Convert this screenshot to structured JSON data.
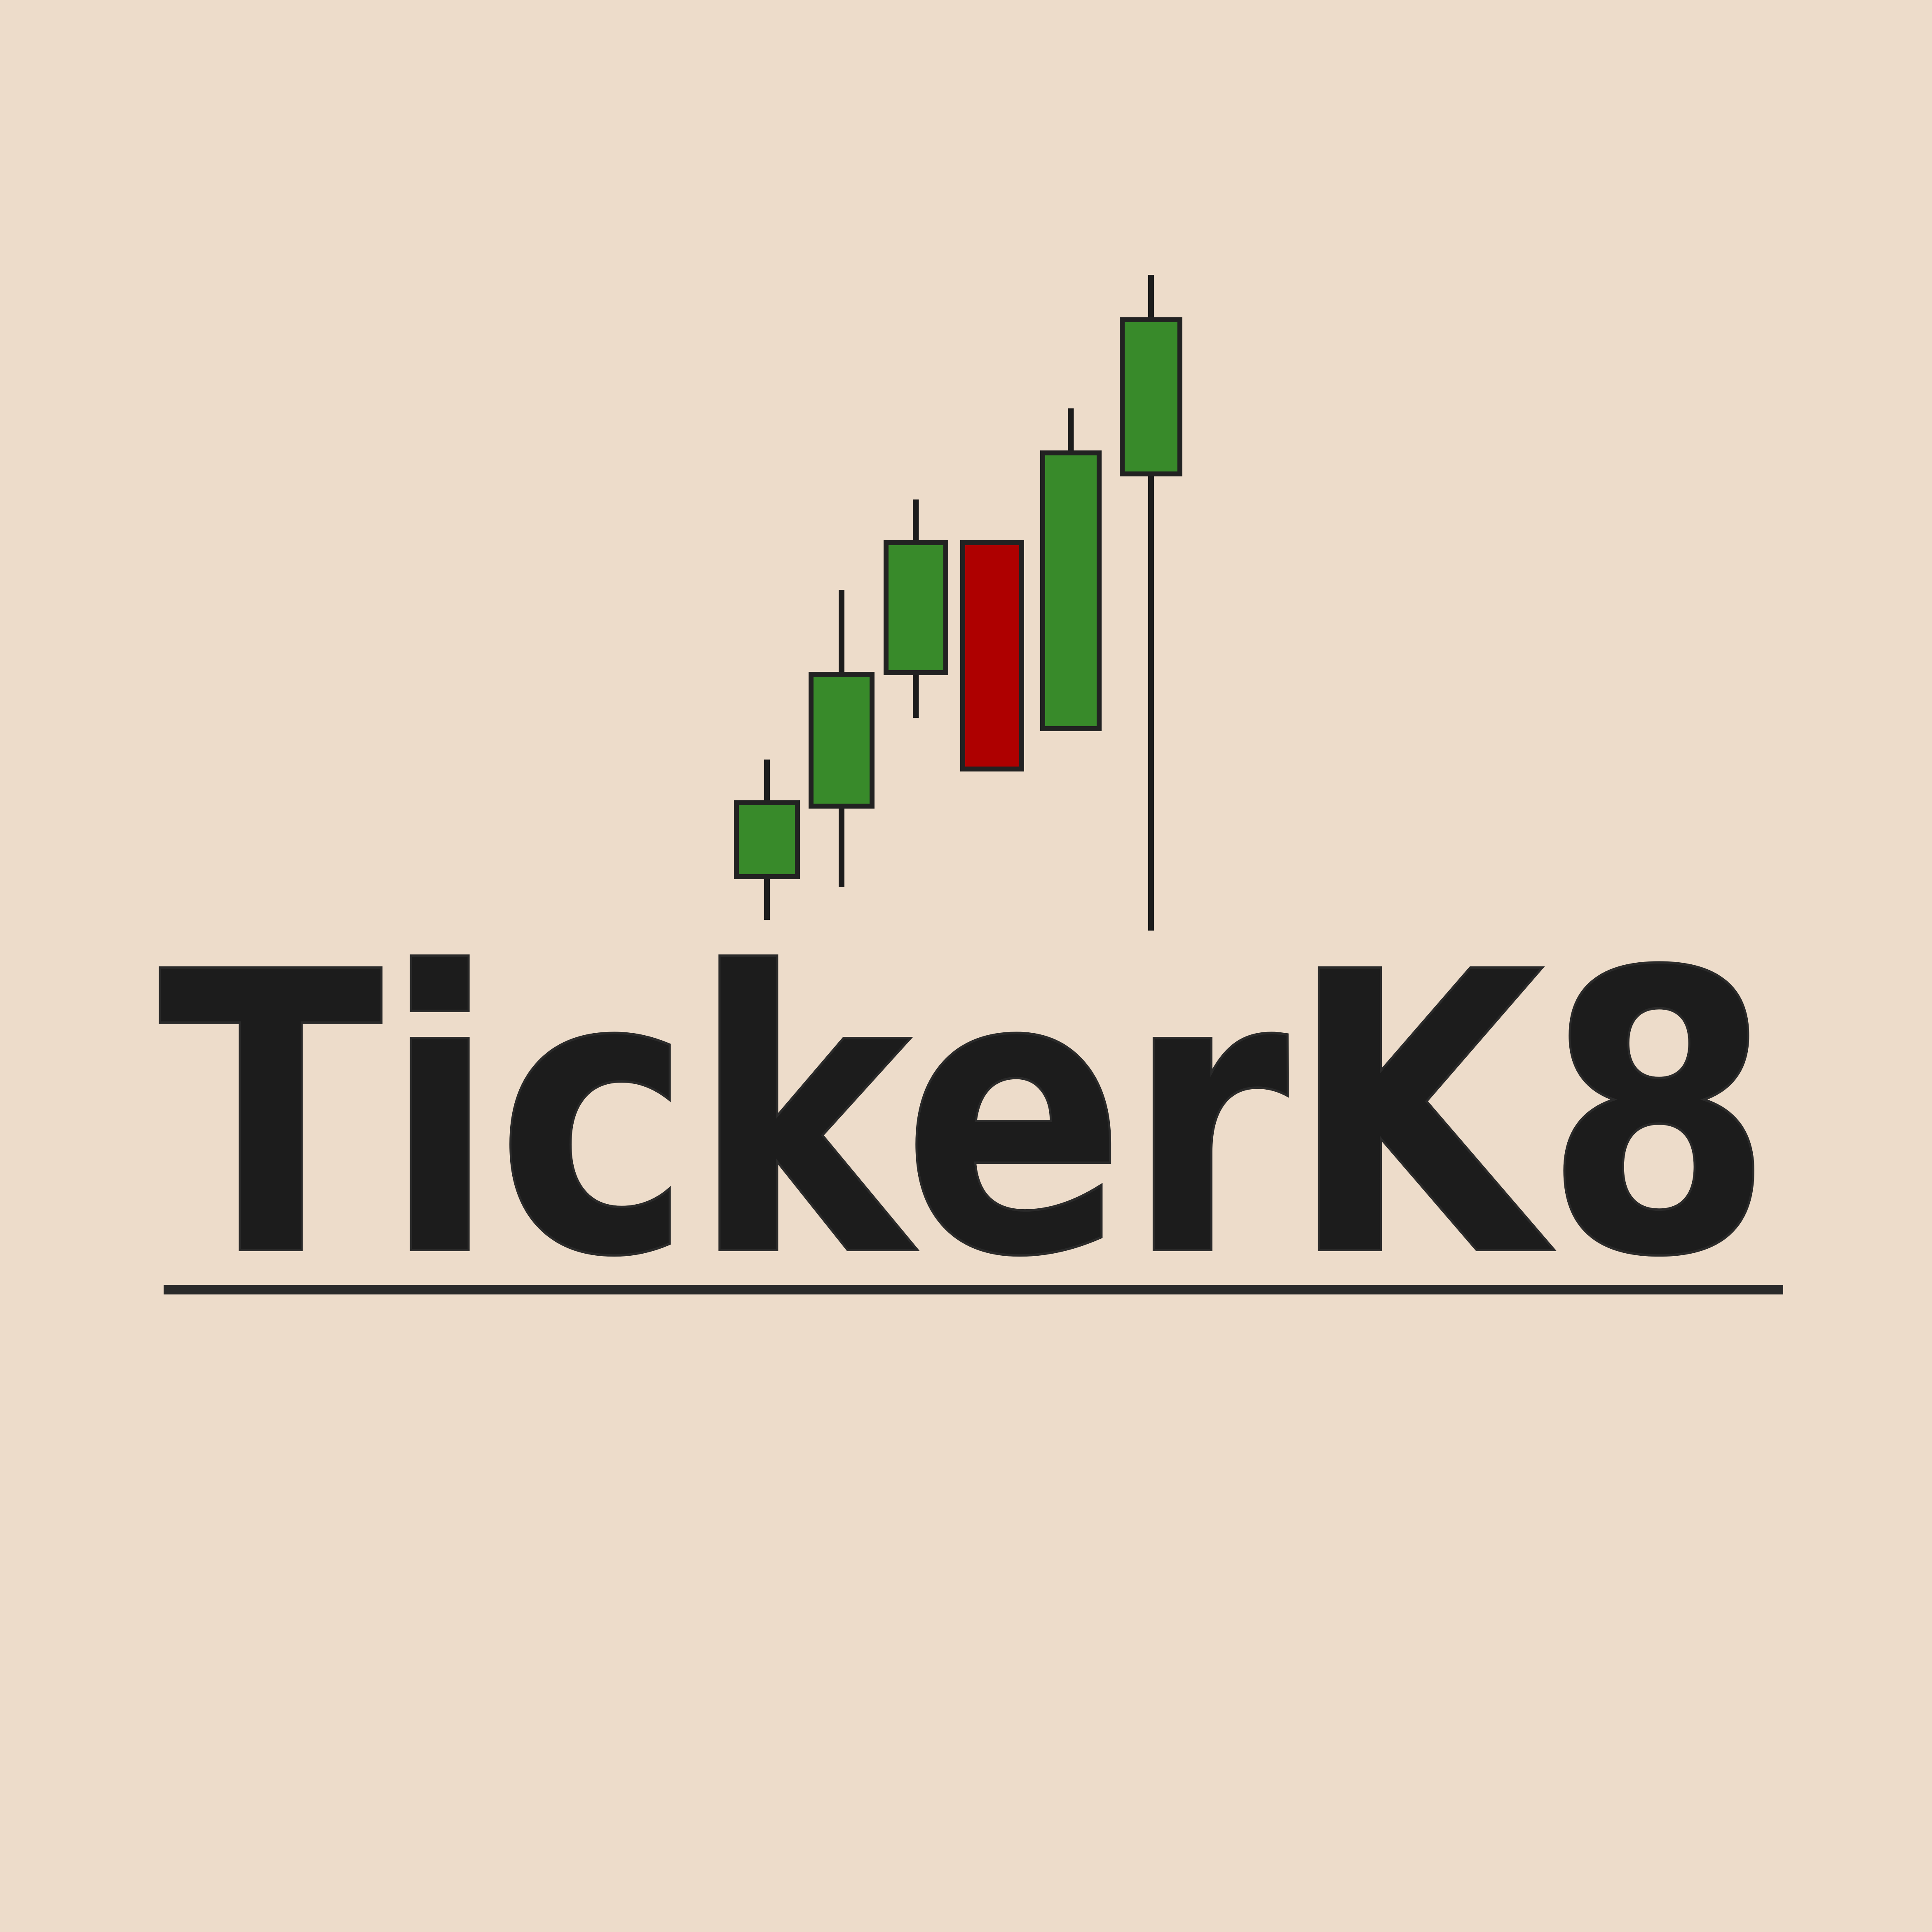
{
  "logo": {
    "wordmark": "TickerK8"
  },
  "colors": {
    "background": "#EDDCCA",
    "ink": "#1C1C1C",
    "bullish": "#388A2A",
    "bearish": "#AE0000"
  },
  "candles": [
    {
      "kind": "bullish"
    },
    {
      "kind": "bullish"
    },
    {
      "kind": "bullish"
    },
    {
      "kind": "bearish"
    },
    {
      "kind": "bullish"
    },
    {
      "kind": "bullish"
    }
  ]
}
